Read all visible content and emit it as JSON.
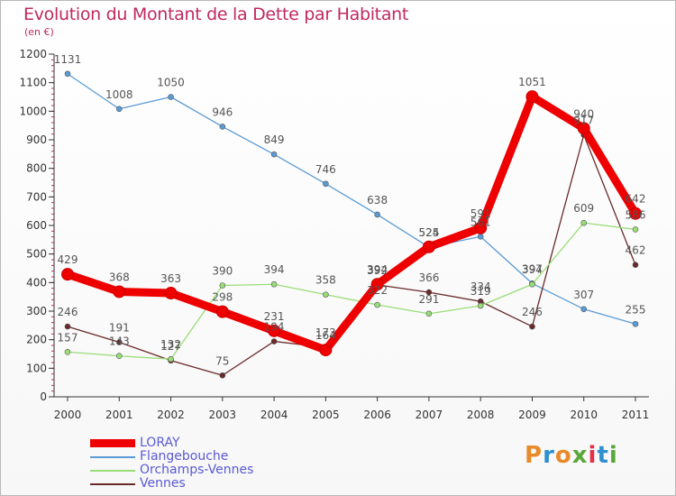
{
  "title": "Evolution du Montant de la Dette par Habitant",
  "subtitle": "(en €)",
  "logo": {
    "text": "Proxiti",
    "colors": [
      "#e88a2a",
      "#2f8fd0",
      "#e88a2a",
      "#5aa83a",
      "#e2304a",
      "#2f8fd0",
      "#5aa83a"
    ]
  },
  "chart_data": {
    "type": "line",
    "categories": [
      "2000",
      "2001",
      "2002",
      "2003",
      "2004",
      "2005",
      "2006",
      "2007",
      "2008",
      "2009",
      "2010",
      "2011"
    ],
    "ylim": [
      0,
      1200
    ],
    "yticks": [
      0,
      100,
      200,
      300,
      400,
      500,
      600,
      700,
      800,
      900,
      1000,
      1100,
      1200
    ],
    "grid": false,
    "legend_position": "bottom-left",
    "series": [
      {
        "name": "LORAY",
        "color": "#ee0000",
        "thick": true,
        "values": [
          429,
          368,
          363,
          298,
          231,
          164,
          394,
          525,
          591,
          1051,
          940,
          642
        ],
        "labels": [
          "429",
          "368",
          "363",
          "298",
          "231",
          "164",
          "394",
          "525",
          "591",
          "1051",
          "940",
          "642"
        ]
      },
      {
        "name": "Flangebouche",
        "color": "#5b9bd5",
        "thick": false,
        "values": [
          1131,
          1008,
          1050,
          946,
          849,
          746,
          638,
          524,
          561,
          397,
          307,
          255
        ],
        "labels": [
          "1131",
          "1008",
          "1050",
          "946",
          "849",
          "746",
          "638",
          "524",
          "561",
          "397",
          "307",
          "255"
        ]
      },
      {
        "name": "Orchamps-Vennes",
        "color": "#99dd77",
        "thick": false,
        "values": [
          157,
          143,
          132,
          390,
          394,
          358,
          322,
          291,
          319,
          394,
          609,
          586
        ],
        "labels": [
          "157",
          "143",
          "132",
          "390",
          "394",
          "358",
          "322",
          "291",
          "319",
          "394",
          "609",
          "586"
        ]
      },
      {
        "name": "Vennes",
        "color": "#6b2a2a",
        "thick": false,
        "values": [
          246,
          191,
          127,
          75,
          194,
          173,
          392,
          366,
          334,
          246,
          917,
          462
        ],
        "labels": [
          "246",
          "191",
          "127",
          "75",
          "194",
          "173",
          "392",
          "366",
          "334",
          "246",
          "917",
          "462"
        ]
      }
    ]
  }
}
